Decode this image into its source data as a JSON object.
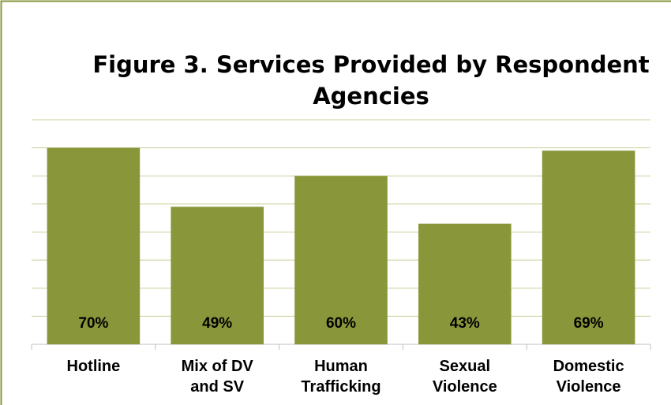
{
  "chart_data": {
    "type": "bar",
    "title": "Figure 3. Services Provided by Respondent Agencies",
    "categories": [
      "Hotline",
      "Mix of DV and SV",
      "Human Trafficking",
      "Sexual Violence",
      "Domestic Violence"
    ],
    "values": [
      70,
      49,
      60,
      43,
      69
    ],
    "value_labels": [
      "70%",
      "49%",
      "60%",
      "43%",
      "69%"
    ],
    "color": "#8a963a",
    "ylim": [
      0,
      80
    ],
    "yticks": [
      0,
      10,
      20,
      30,
      40,
      50,
      60,
      70,
      80
    ],
    "grid": true
  }
}
